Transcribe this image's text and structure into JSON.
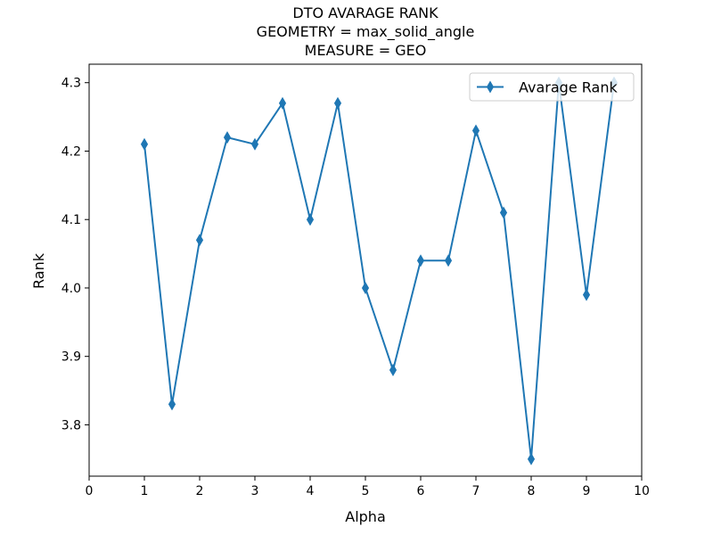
{
  "chart_data": {
    "type": "line",
    "title": [
      "DTO AVARAGE RANK",
      "GEOMETRY = max_solid_angle",
      "MEASURE = GEO"
    ],
    "xlabel": "Alpha",
    "ylabel": "Rank",
    "xlim": [
      0,
      10
    ],
    "ylim": [
      3.725,
      4.327
    ],
    "xticks": [
      "0",
      "1",
      "2",
      "3",
      "4",
      "5",
      "6",
      "7",
      "8",
      "9",
      "10"
    ],
    "yticks": [
      "3.8",
      "3.9",
      "4.0",
      "4.1",
      "4.2",
      "4.3"
    ],
    "legend_position": "top-right",
    "grid": false,
    "series": [
      {
        "name": "Avarage Rank",
        "color": "#1f77b4",
        "marker": "thin-diamond",
        "x": [
          1,
          1.5,
          2,
          2.5,
          3,
          3.5,
          4,
          4.5,
          5,
          5.5,
          6,
          6.5,
          7,
          7.5,
          8,
          8.5,
          9,
          9.5
        ],
        "y": [
          4.21,
          3.83,
          4.07,
          4.22,
          4.21,
          4.27,
          4.1,
          4.27,
          4.0,
          3.88,
          4.04,
          4.04,
          4.23,
          4.11,
          3.75,
          4.3,
          3.99,
          4.3
        ]
      }
    ]
  }
}
